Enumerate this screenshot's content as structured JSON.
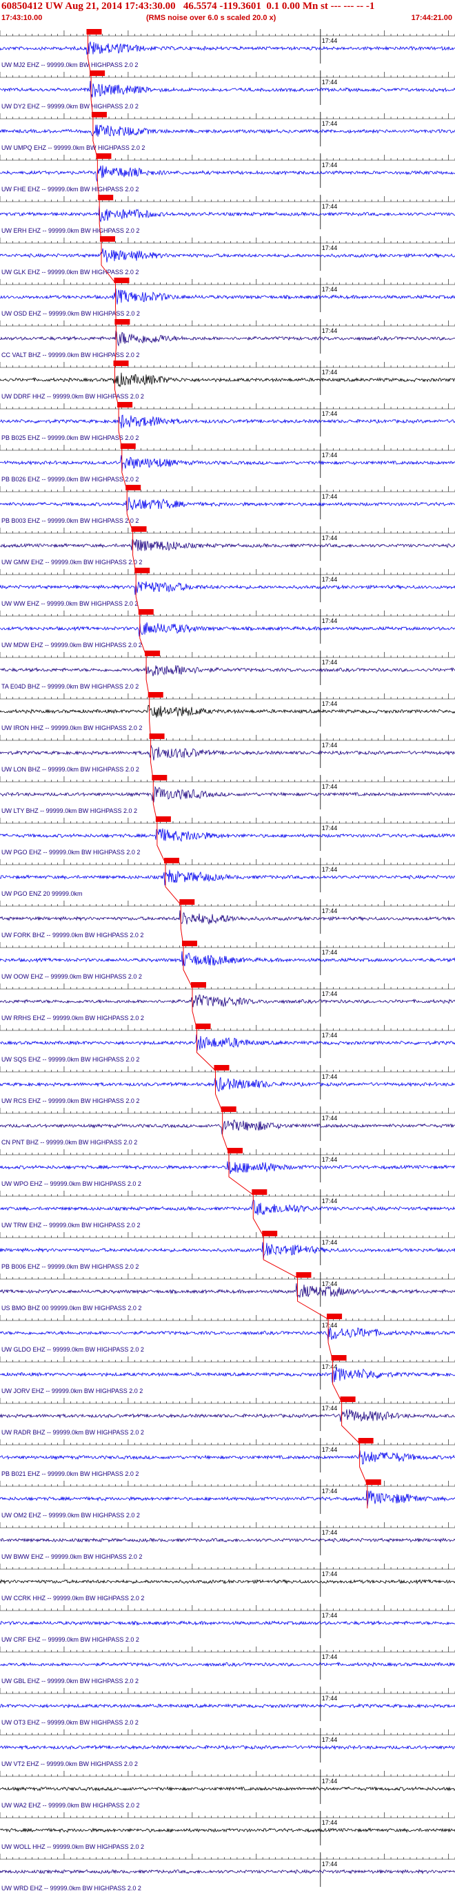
{
  "header": {
    "title": "60850412 UW Aug 21, 2014 17:43:30.00   46.5574 -119.3601  0.1 0.00 Mn st --- --- -- -1",
    "start_time": "17:43:10.00",
    "rms_note": "(RMS noise over 6.0 s scaled 20.0 x)",
    "end_time": "17:44:21.00"
  },
  "colors": {
    "pick": "#ee0000",
    "grid": "#000000",
    "blue": "#0000ee",
    "navy": "#1a0080",
    "black": "#000000"
  },
  "chart_data": {
    "type": "line",
    "title": "",
    "xlabel": "",
    "ylabel": "",
    "time_range": [
      "17:43:10.00",
      "17:44:21.00"
    ],
    "tick_label": "17:44",
    "traces": [
      {
        "label": "UW MJ2 EHZ -- 99999.0km BW HIGHPASS  2.0  2",
        "color": "blue",
        "pick_sec": 13.5
      },
      {
        "label": "UW DY2 EHZ -- 99999.0km BW HIGHPASS  2.0  2",
        "color": "blue",
        "pick_sec": 14.0
      },
      {
        "label": "UW UMPQ EHZ -- 99999.0km BW HIGHPASS  2.0  2",
        "color": "blue",
        "pick_sec": 14.3
      },
      {
        "label": "UW FHE EHZ -- 99999.0km BW HIGHPASS  2.0  2",
        "color": "blue",
        "pick_sec": 15.0
      },
      {
        "label": "UW ERH EHZ -- 99999.0km BW HIGHPASS  2.0  2",
        "color": "blue",
        "pick_sec": 15.3
      },
      {
        "label": "UW GLK EHZ -- 99999.0km BW HIGHPASS  2.0  2",
        "color": "blue",
        "pick_sec": 15.6
      },
      {
        "label": "UW OSD EHZ -- 99999.0km BW HIGHPASS  2.0  2",
        "color": "blue",
        "pick_sec": 17.8
      },
      {
        "label": "CC VALT BHZ -- 99999.0km BW HIGHPASS  2.0  2",
        "color": "navy",
        "pick_sec": 17.9
      },
      {
        "label": "UW DDRF HHZ -- 99999.0km BW HIGHPASS  2.0  2",
        "color": "black",
        "pick_sec": 17.7
      },
      {
        "label": "PB B025 EHZ -- 99999.0km BW HIGHPASS  2.0  2",
        "color": "blue",
        "pick_sec": 18.3
      },
      {
        "label": "PB B026 EHZ -- 99999.0km BW HIGHPASS  2.0  2",
        "color": "blue",
        "pick_sec": 18.8
      },
      {
        "label": "PB B003 EHZ -- 99999.0km BW HIGHPASS  2.0  2",
        "color": "blue",
        "pick_sec": 19.6
      },
      {
        "label": "UW GMW EHZ -- 99999.0km BW HIGHPASS  2.0  2",
        "color": "navy",
        "pick_sec": 20.5
      },
      {
        "label": "UW WW EHZ -- 99999.0km BW HIGHPASS  2.0  2",
        "color": "blue",
        "pick_sec": 21.0
      },
      {
        "label": "UW MDW EHZ -- 99999.0km BW HIGHPASS  2.0  2",
        "color": "blue",
        "pick_sec": 21.6
      },
      {
        "label": "TA E04D BHZ -- 99999.0km BW HIGHPASS  2.0  2",
        "color": "navy",
        "pick_sec": 22.6
      },
      {
        "label": "UW IRON HHZ -- 99999.0km BW HIGHPASS  2.0  2",
        "color": "black",
        "pick_sec": 23.1
      },
      {
        "label": "UW LON BHZ -- 99999.0km BW HIGHPASS  2.0  2",
        "color": "navy",
        "pick_sec": 23.3
      },
      {
        "label": "UW LTY BHZ -- 99999.0km BW HIGHPASS  2.0  2",
        "color": "navy",
        "pick_sec": 23.7
      },
      {
        "label": "UW PGO EHZ -- 99999.0km BW HIGHPASS  2.0  2",
        "color": "blue",
        "pick_sec": 24.3
      },
      {
        "label": "UW PGO ENZ 20 99999.0km",
        "color": "blue",
        "pick_sec": 25.6
      },
      {
        "label": "UW FORK BHZ -- 99999.0km BW HIGHPASS  2.0  2",
        "color": "navy",
        "pick_sec": 28.0
      },
      {
        "label": "UW OOW EHZ -- 99999.0km BW HIGHPASS  2.0  2",
        "color": "blue",
        "pick_sec": 28.4
      },
      {
        "label": "UW RRHS EHZ -- 99999.0km BW HIGHPASS  2.0  2",
        "color": "navy",
        "pick_sec": 29.8
      },
      {
        "label": "UW SQS EHZ -- 99999.0km BW HIGHPASS  2.0  2",
        "color": "blue",
        "pick_sec": 30.5
      },
      {
        "label": "UW RCS EHZ -- 99999.0km BW HIGHPASS  2.0  2",
        "color": "blue",
        "pick_sec": 33.4
      },
      {
        "label": "CN PNT BHZ -- 99999.0km BW HIGHPASS  2.0  2",
        "color": "navy",
        "pick_sec": 34.5
      },
      {
        "label": "UW WPO EHZ -- 99999.0km BW HIGHPASS  2.0  2",
        "color": "blue",
        "pick_sec": 35.5
      },
      {
        "label": "UW TRW EHZ -- 99999.0km BW HIGHPASS  2.0  2",
        "color": "blue",
        "pick_sec": 39.3
      },
      {
        "label": "PB B006 EHZ -- 99999.0km BW HIGHPASS  2.0  2",
        "color": "blue",
        "pick_sec": 40.9
      },
      {
        "label": "US BMO BHZ 00 99999.0km BW HIGHPASS  2.0  2",
        "color": "navy",
        "pick_sec": 46.2
      },
      {
        "label": "UW GLDO EHZ -- 99999.0km BW HIGHPASS  2.0  2",
        "color": "blue",
        "pick_sec": 51.0
      },
      {
        "label": "UW JORV EHZ -- 99999.0km BW HIGHPASS  2.0  2",
        "color": "blue",
        "pick_sec": 51.7
      },
      {
        "label": "UW RADR BHZ -- 99999.0km BW HIGHPASS  2.0  2",
        "color": "navy",
        "pick_sec": 53.1
      },
      {
        "label": "PB B021 EHZ -- 99999.0km BW HIGHPASS  2.0  2",
        "color": "blue",
        "pick_sec": 55.9
      },
      {
        "label": "UW OM2 EHZ -- 99999.0km BW HIGHPASS  2.0  2",
        "color": "blue",
        "pick_sec": 57.1
      },
      {
        "label": "UW BWW EHZ -- 99999.0km BW HIGHPASS  2.0  2",
        "color": "navy",
        "pick_sec": null
      },
      {
        "label": "UW CCRK HHZ -- 99999.0km BW HIGHPASS  2.0  2",
        "color": "black",
        "pick_sec": null
      },
      {
        "label": "UW CRF EHZ -- 99999.0km BW HIGHPASS  2.0  2",
        "color": "blue",
        "pick_sec": null
      },
      {
        "label": "UW GBL EHZ -- 99999.0km BW HIGHPASS  2.0  2",
        "color": "blue",
        "pick_sec": null
      },
      {
        "label": "UW OT3 EHZ -- 99999.0km BW HIGHPASS  2.0  2",
        "color": "blue",
        "pick_sec": null
      },
      {
        "label": "UW VT2 EHZ -- 99999.0km BW HIGHPASS  2.0  2",
        "color": "blue",
        "pick_sec": null
      },
      {
        "label": "UW WA2 EHZ -- 99999.0km BW HIGHPASS  2.0  2",
        "color": "black",
        "pick_sec": null
      },
      {
        "label": "UW WOLL HHZ -- 99999.0km BW HIGHPASS  2.0  2",
        "color": "black",
        "pick_sec": null
      },
      {
        "label": "UW WRD EHZ -- 99999.0km BW HIGHPASS  2.0  2",
        "color": "navy",
        "pick_sec": null
      }
    ]
  }
}
